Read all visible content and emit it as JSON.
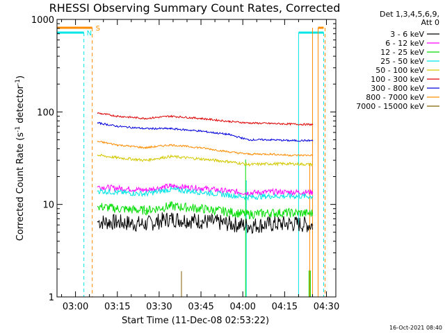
{
  "chart_data": {
    "type": "line",
    "title": "RHESSI Observing Summary Count Rates, Corrected",
    "xlabel": "Start Time (11-Dec-08 02:53:22)",
    "ylabel_parts": {
      "main": "Corrected Count Rate (s",
      "sup1": "-1",
      "mid": " detector",
      "sup2": "-1",
      "end": ")"
    },
    "y_scale": "log",
    "ylim": [
      1,
      1000
    ],
    "y_ticks": [
      {
        "value": 1,
        "label": "1"
      },
      {
        "value": 10,
        "label": "10"
      },
      {
        "value": 100,
        "label": "100"
      },
      {
        "value": 1000,
        "label": "1000"
      }
    ],
    "xlim": [
      "02:53:22",
      "04:33:22"
    ],
    "x_ticks": [
      {
        "value": "03:00",
        "label": "03:00"
      },
      {
        "value": "03:15",
        "label": "03:15"
      },
      {
        "value": "03:30",
        "label": "03:30"
      },
      {
        "value": "03:45",
        "label": "03:45"
      },
      {
        "value": "04:00",
        "label": "04:00"
      },
      {
        "value": "04:15",
        "label": "04:15"
      },
      {
        "value": "04:30",
        "label": "04:30"
      }
    ],
    "legend": {
      "placement": "right",
      "header_lines": [
        "Det 1,3,4,5,6,9,",
        "Att 0"
      ],
      "entries": [
        {
          "label": "3 - 6 keV",
          "color": "#000000"
        },
        {
          "label": "6 - 12 keV",
          "color": "#ff00ff"
        },
        {
          "label": "12 - 25 keV",
          "color": "#00dd00"
        },
        {
          "label": "25 - 50 keV",
          "color": "#00e5e5"
        },
        {
          "label": "50 - 100 keV",
          "color": "#d4c800"
        },
        {
          "label": "100 - 300 keV",
          "color": "#dd0000"
        },
        {
          "label": "300 - 800 keV",
          "color": "#0000dd"
        },
        {
          "label": "800 - 7000 keV",
          "color": "#ff8c00"
        },
        {
          "label": "7000 - 15000 keV",
          "color": "#806000"
        }
      ]
    },
    "series": [
      {
        "name": "3 - 6 keV",
        "color": "#000000",
        "noise": 0.09,
        "x": [
          "03:08",
          "03:15",
          "03:25",
          "03:34",
          "03:45",
          "03:55",
          "04:02",
          "04:10",
          "04:17",
          "04:25"
        ],
        "y": [
          6.5,
          6.4,
          6.1,
          7.0,
          6.6,
          6.2,
          5.9,
          6.1,
          6.2,
          6.0
        ]
      },
      {
        "name": "6 - 12 keV",
        "color": "#ff00ff",
        "noise": 0.03,
        "x": [
          "03:08",
          "03:15",
          "03:25",
          "03:34",
          "03:45",
          "03:55",
          "04:02",
          "04:10",
          "04:17",
          "04:25"
        ],
        "y": [
          15.5,
          15.0,
          14.3,
          15.8,
          15.0,
          13.9,
          13.3,
          13.7,
          13.6,
          13.5
        ]
      },
      {
        "name": "12 - 25 keV",
        "color": "#00dd00",
        "noise": 0.05,
        "x": [
          "03:08",
          "03:15",
          "03:25",
          "03:34",
          "03:45",
          "03:55",
          "04:02",
          "04:10",
          "04:17",
          "04:25"
        ],
        "y": [
          9.5,
          9.0,
          8.6,
          9.6,
          9.0,
          8.3,
          7.8,
          8.1,
          8.1,
          8.0
        ]
      },
      {
        "name": "25 - 50 keV",
        "color": "#00e5e5",
        "noise": 0.03,
        "x": [
          "03:08",
          "03:15",
          "03:25",
          "03:34",
          "03:45",
          "03:55",
          "04:02",
          "04:10",
          "04:17",
          "04:25"
        ],
        "y": [
          14.0,
          13.5,
          13.0,
          14.5,
          13.6,
          12.6,
          12.0,
          12.3,
          12.3,
          12.2
        ]
      },
      {
        "name": "50 - 100 keV",
        "color": "#d4c800",
        "noise": 0.015,
        "x": [
          "03:08",
          "03:15",
          "03:25",
          "03:34",
          "03:45",
          "03:55",
          "04:02",
          "04:10",
          "04:17",
          "04:25"
        ],
        "y": [
          34,
          32,
          30,
          33,
          31,
          29,
          27,
          27.5,
          27.5,
          27
        ]
      },
      {
        "name": "100 - 300 keV",
        "color": "#dd0000",
        "noise": 0.01,
        "x": [
          "03:08",
          "03:15",
          "03:25",
          "03:34",
          "03:45",
          "03:55",
          "04:02",
          "04:10",
          "04:17",
          "04:25"
        ],
        "y": [
          97,
          90,
          85,
          90,
          85,
          79,
          76,
          75,
          74,
          73
        ]
      },
      {
        "name": "300 - 800 keV",
        "color": "#0000dd",
        "noise": 0.01,
        "x": [
          "03:08",
          "03:15",
          "03:25",
          "03:34",
          "03:45",
          "03:55",
          "04:02",
          "04:10",
          "04:17",
          "04:25"
        ],
        "y": [
          76,
          70,
          66,
          66,
          62,
          57,
          50,
          50,
          49,
          49
        ]
      },
      {
        "name": "800 - 7000 keV",
        "color": "#ff8c00",
        "noise": 0.01,
        "x": [
          "03:08",
          "03:15",
          "03:25",
          "03:34",
          "03:45",
          "03:55",
          "04:02",
          "04:10",
          "04:17",
          "04:25"
        ],
        "y": [
          48,
          44,
          41,
          44,
          41,
          37,
          35,
          35,
          34,
          34
        ]
      },
      {
        "name": "7000 - 15000 keV",
        "color": "#806000",
        "noise": 0,
        "x": [
          "03:38",
          "03:38"
        ],
        "y": [
          1,
          1.9
        ]
      }
    ],
    "flags": [
      {
        "label": "S",
        "color": "#ff8c00"
      },
      {
        "label": "N",
        "color": "#00e5e5"
      }
    ],
    "footer_timestamp": "16-Oct-2021 08:40"
  }
}
